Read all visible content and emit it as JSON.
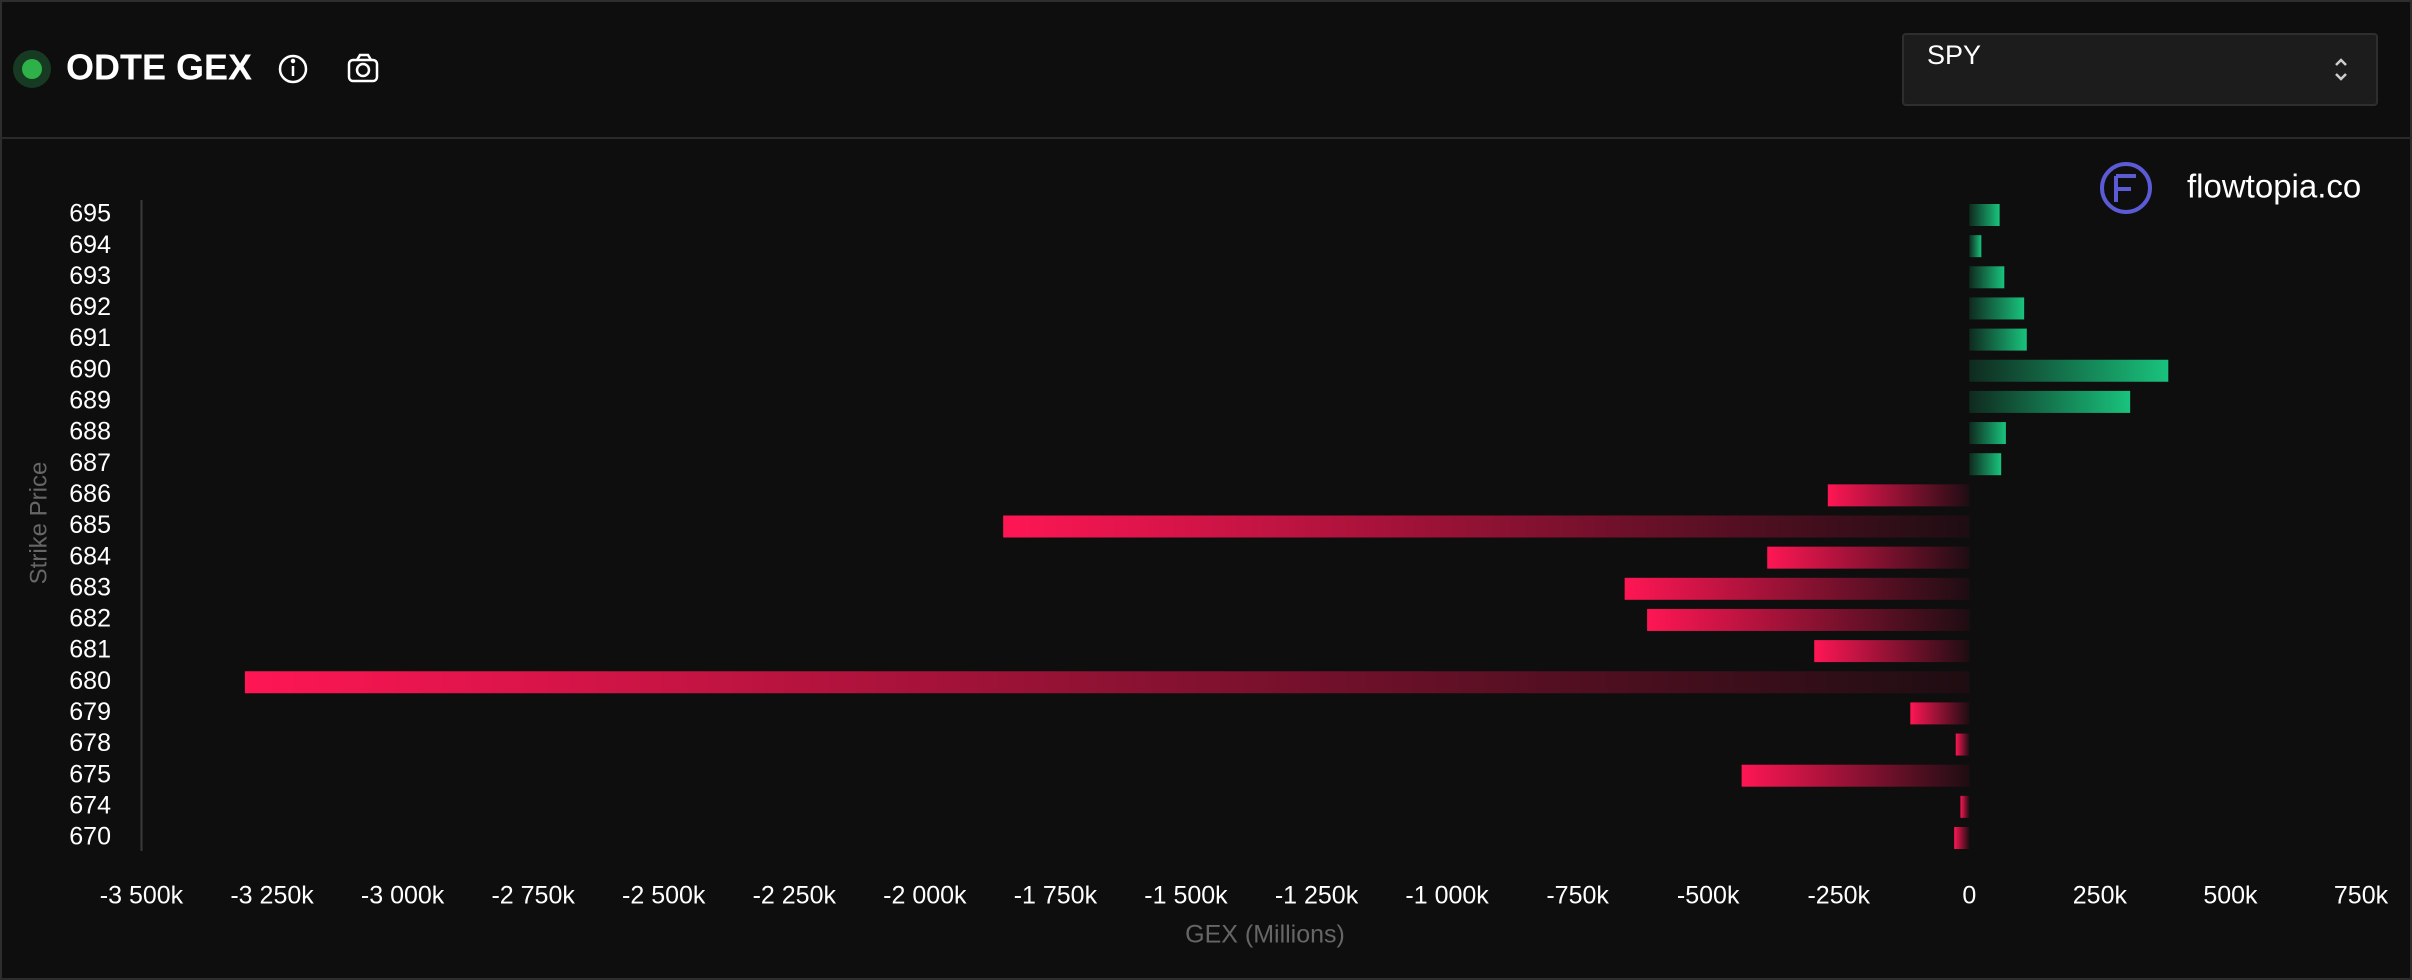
{
  "header": {
    "ticker": "SPY",
    "brand": "flowtopia.co"
  },
  "chart_data": {
    "type": "hbar",
    "title": "ODTE GEX",
    "x_label": "GEX (Millions)",
    "y_label": "Strike Price",
    "categories": [
      "695",
      "694",
      "693",
      "692",
      "691",
      "690",
      "689",
      "688",
      "687",
      "686",
      "685",
      "684",
      "683",
      "682",
      "681",
      "680",
      "679",
      "678",
      "675",
      "674",
      "670"
    ],
    "values": [
      58000,
      23000,
      67000,
      105000,
      110000,
      381000,
      308000,
      70000,
      61000,
      -271000,
      -1850000,
      -387000,
      -660000,
      -617000,
      -297000,
      -3302000,
      -113000,
      -26000,
      -436000,
      -17000,
      -29000
    ],
    "positive_color": "#19c37d",
    "negative_color": "#ff1654",
    "xlim": [
      -3500000,
      750000
    ],
    "xticks": [
      {
        "value": -3500000,
        "label": "-3 500k"
      },
      {
        "value": -3250000,
        "label": "-3 250k"
      },
      {
        "value": -3000000,
        "label": "-3 000k"
      },
      {
        "value": -2750000,
        "label": "-2 750k"
      },
      {
        "value": -2500000,
        "label": "-2 500k"
      },
      {
        "value": -2250000,
        "label": "-2 250k"
      },
      {
        "value": -2000000,
        "label": "-2 000k"
      },
      {
        "value": -1750000,
        "label": "-1 750k"
      },
      {
        "value": -1500000,
        "label": "-1 500k"
      },
      {
        "value": -1250000,
        "label": "-1 250k"
      },
      {
        "value": -1000000,
        "label": "-1 000k"
      },
      {
        "value": -750000,
        "label": "-750k"
      },
      {
        "value": -500000,
        "label": "-500k"
      },
      {
        "value": -250000,
        "label": "-250k"
      },
      0,
      {
        "value": 250000,
        "label": "250k"
      },
      {
        "value": 500000,
        "label": "500k"
      },
      {
        "value": 750000,
        "label": "750k"
      }
    ],
    "grid": false
  }
}
